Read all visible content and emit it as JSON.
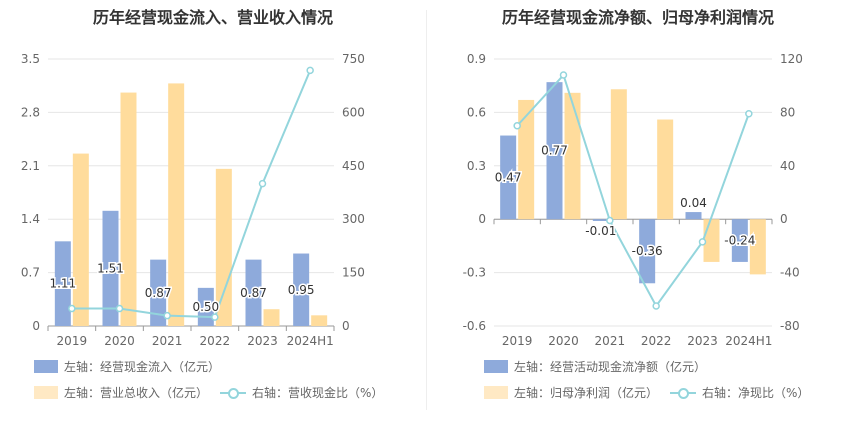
{
  "chart_data": [
    {
      "type": "bar",
      "title": "历年经营现金流入、营业收入情况",
      "categories": [
        "2019",
        "2020",
        "2021",
        "2022",
        "2023",
        "2024H1"
      ],
      "left_axis": {
        "ylim": [
          0,
          3.5
        ],
        "ticks": [
          "0",
          "0.7",
          "1.4",
          "2.1",
          "2.8",
          "3.5"
        ]
      },
      "right_axis": {
        "ylim": [
          0,
          750
        ],
        "ticks": [
          "0",
          "150",
          "300",
          "450",
          "600",
          "750"
        ]
      },
      "series": [
        {
          "name": "左轴：经营现金流入（亿元）",
          "type": "bar",
          "axis": "left",
          "color": "#8eaadb",
          "values": [
            1.11,
            1.51,
            0.87,
            0.5,
            0.87,
            0.95
          ],
          "labels": [
            "1.11",
            "1.51",
            "0.87",
            "0.50",
            "0.87",
            "0.95"
          ]
        },
        {
          "name": "左轴：营业总收入（亿元）",
          "type": "bar",
          "axis": "left",
          "color": "#ffdc9c",
          "values": [
            2.26,
            3.06,
            3.18,
            2.06,
            0.22,
            0.14
          ]
        },
        {
          "name": "右轴：营收现金比（%）",
          "type": "line",
          "axis": "right",
          "color": "#93d5dc",
          "values": [
            49,
            49,
            29,
            25,
            400,
            718
          ]
        }
      ],
      "legend": [
        "左轴：经营现金流入（亿元）",
        "左轴：营业总收入（亿元）",
        "右轴：营收现金比（%）"
      ],
      "grid": true,
      "legend_position": "bottom-left"
    },
    {
      "type": "bar",
      "title": "历年经营现金流净额、归母净利润情况",
      "categories": [
        "2019",
        "2020",
        "2021",
        "2022",
        "2023",
        "2024H1"
      ],
      "left_axis": {
        "ylim": [
          -0.6,
          0.9
        ],
        "ticks": [
          "-0.6",
          "-0.3",
          "0",
          "0.3",
          "0.6",
          "0.9"
        ]
      },
      "right_axis": {
        "ylim": [
          -80,
          120
        ],
        "ticks": [
          "-80",
          "-40",
          "0",
          "40",
          "80",
          "120"
        ]
      },
      "series": [
        {
          "name": "左轴：经营活动现金流净额（亿元）",
          "type": "bar",
          "axis": "left",
          "color": "#8eaadb",
          "values": [
            0.47,
            0.77,
            -0.01,
            -0.36,
            0.04,
            -0.24
          ],
          "labels": [
            "0.47",
            "0.77",
            "-0.01",
            "-0.36",
            "0.04",
            "-0.24"
          ]
        },
        {
          "name": "左轴：归母净利润（亿元）",
          "type": "bar",
          "axis": "left",
          "color": "#ffdc9c",
          "values": [
            0.67,
            0.71,
            0.73,
            0.56,
            -0.24,
            -0.31
          ]
        },
        {
          "name": "右轴：净现比（%）",
          "type": "line",
          "axis": "right",
          "color": "#93d5dc",
          "values": [
            70,
            108,
            -1,
            -65,
            -17,
            79
          ]
        }
      ],
      "legend": [
        "左轴：经营活动现金流净额（亿元）",
        "左轴：归母净利润（亿元）",
        "右轴：净现比（%）"
      ],
      "grid": true,
      "legend_position": "bottom-left"
    }
  ]
}
